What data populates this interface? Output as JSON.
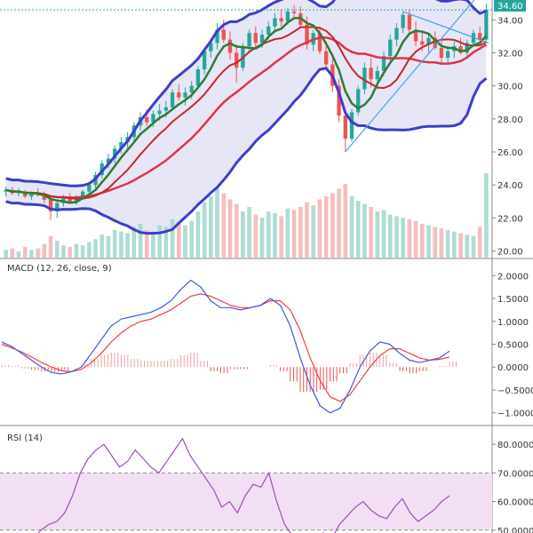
{
  "chart_data": [
    {
      "type": "candlestick",
      "pane": "price",
      "price_tag": "34.60",
      "y_axis_ticks": [
        "20.00",
        "22.00",
        "24.00",
        "26.00",
        "28.00",
        "30.00",
        "32.00",
        "34.00"
      ],
      "ylim": [
        19.6,
        35.2
      ],
      "candles": [
        [
          23.6,
          23.9,
          23.3,
          23.7
        ],
        [
          23.7,
          23.9,
          23.4,
          23.5
        ],
        [
          23.5,
          23.8,
          23.3,
          23.6
        ],
        [
          23.6,
          23.7,
          23.2,
          23.3
        ],
        [
          23.3,
          23.6,
          23.1,
          23.5
        ],
        [
          23.5,
          23.8,
          23.3,
          23.4
        ],
        [
          23.4,
          23.6,
          22.9,
          23.1
        ],
        [
          23.1,
          23.3,
          21.9,
          22.4
        ],
        [
          22.4,
          23.1,
          22.0,
          22.9
        ],
        [
          22.9,
          23.4,
          22.7,
          23.2
        ],
        [
          23.2,
          23.5,
          22.9,
          23.0
        ],
        [
          23.0,
          23.4,
          22.8,
          23.3
        ],
        [
          23.3,
          23.7,
          23.1,
          23.6
        ],
        [
          23.6,
          24.2,
          23.4,
          24.0
        ],
        [
          24.0,
          24.8,
          23.8,
          24.6
        ],
        [
          24.6,
          25.5,
          24.4,
          25.3
        ],
        [
          25.3,
          25.9,
          25.0,
          25.6
        ],
        [
          25.6,
          26.4,
          25.3,
          26.2
        ],
        [
          26.2,
          26.9,
          25.9,
          26.6
        ],
        [
          26.6,
          27.2,
          26.2,
          26.9
        ],
        [
          26.9,
          27.8,
          26.6,
          27.6
        ],
        [
          27.6,
          28.4,
          27.3,
          28.1
        ],
        [
          28.1,
          28.6,
          27.6,
          27.8
        ],
        [
          27.8,
          28.5,
          27.5,
          28.3
        ],
        [
          28.3,
          28.9,
          27.9,
          28.5
        ],
        [
          28.5,
          29.1,
          28.1,
          28.7
        ],
        [
          28.7,
          29.8,
          28.5,
          29.6
        ],
        [
          29.6,
          30.1,
          29.1,
          29.3
        ],
        [
          29.3,
          29.9,
          28.8,
          29.6
        ],
        [
          29.6,
          30.3,
          29.2,
          30.0
        ],
        [
          30.0,
          31.2,
          29.8,
          31.0
        ],
        [
          31.0,
          32.3,
          30.7,
          32.1
        ],
        [
          32.1,
          32.9,
          31.7,
          32.6
        ],
        [
          32.6,
          33.8,
          32.2,
          33.4
        ],
        [
          33.4,
          34.0,
          32.6,
          32.8
        ],
        [
          32.8,
          33.3,
          31.6,
          32.0
        ],
        [
          32.0,
          32.5,
          30.2,
          31.1
        ],
        [
          31.1,
          32.6,
          30.9,
          32.4
        ],
        [
          32.4,
          33.4,
          32.1,
          33.2
        ],
        [
          33.2,
          33.6,
          32.3,
          32.6
        ],
        [
          32.6,
          33.4,
          32.3,
          33.1
        ],
        [
          33.1,
          33.9,
          32.8,
          33.6
        ],
        [
          33.6,
          34.4,
          33.2,
          34.1
        ],
        [
          34.1,
          34.6,
          33.6,
          33.9
        ],
        [
          33.9,
          34.7,
          33.7,
          34.5
        ],
        [
          34.5,
          34.9,
          34.1,
          34.4
        ],
        [
          34.4,
          34.8,
          33.5,
          33.7
        ],
        [
          33.7,
          34.2,
          32.2,
          32.5
        ],
        [
          32.5,
          33.4,
          32.1,
          33.2
        ],
        [
          33.2,
          33.6,
          31.9,
          32.1
        ],
        [
          32.1,
          32.7,
          31.0,
          31.3
        ],
        [
          31.3,
          31.7,
          29.6,
          30.0
        ],
        [
          30.0,
          30.4,
          27.8,
          28.2
        ],
        [
          28.2,
          28.5,
          26.0,
          26.8
        ],
        [
          26.8,
          28.6,
          26.6,
          28.4
        ],
        [
          28.4,
          30.0,
          28.2,
          29.8
        ],
        [
          29.8,
          31.4,
          29.5,
          31.1
        ],
        [
          31.1,
          31.7,
          29.9,
          30.4
        ],
        [
          30.4,
          31.2,
          29.8,
          30.9
        ],
        [
          30.9,
          32.1,
          30.6,
          31.8
        ],
        [
          31.8,
          33.1,
          31.5,
          32.8
        ],
        [
          32.8,
          33.8,
          32.4,
          33.5
        ],
        [
          33.5,
          34.5,
          33.2,
          34.3
        ],
        [
          34.3,
          34.6,
          33.1,
          33.4
        ],
        [
          33.4,
          33.9,
          32.4,
          32.7
        ],
        [
          32.7,
          33.3,
          32.1,
          32.5
        ],
        [
          32.5,
          33.2,
          32.0,
          32.9
        ],
        [
          32.9,
          33.3,
          32.2,
          32.3
        ],
        [
          32.3,
          32.7,
          31.4,
          31.7
        ],
        [
          31.7,
          32.4,
          31.4,
          32.1
        ],
        [
          32.1,
          32.7,
          31.7,
          32.4
        ],
        [
          32.4,
          32.9,
          31.9,
          32.0
        ],
        [
          32.0,
          32.8,
          31.8,
          32.6
        ],
        [
          32.6,
          33.4,
          32.4,
          33.2
        ],
        [
          33.2,
          33.6,
          32.6,
          32.8
        ],
        [
          32.8,
          35.0,
          32.6,
          34.6
        ]
      ],
      "volume": [
        5,
        6,
        4,
        7,
        5,
        6,
        9,
        14,
        11,
        8,
        7,
        9,
        8,
        10,
        12,
        15,
        14,
        18,
        17,
        16,
        20,
        22,
        18,
        17,
        21,
        20,
        25,
        22,
        21,
        24,
        30,
        36,
        40,
        45,
        42,
        38,
        35,
        30,
        33,
        28,
        26,
        30,
        29,
        27,
        32,
        31,
        33,
        36,
        34,
        38,
        40,
        42,
        45,
        48,
        40,
        37,
        35,
        33,
        30,
        31,
        28,
        27,
        26,
        25,
        24,
        22,
        21,
        20,
        19,
        18,
        17,
        16,
        15,
        14,
        20,
        55
      ],
      "overlays": [
        "Bollinger Bands (upper, lower, basis)",
        "Moving Average 1",
        "Moving Average 2"
      ]
    },
    {
      "type": "line",
      "pane": "macd",
      "title": "MACD (12, 26, close, 9)",
      "y_axis_ticks": [
        "2.0000",
        "1.5000",
        "1.0000",
        "0.5000",
        "0.0000",
        "−0.5000",
        "−1.0000"
      ],
      "ylim": [
        -1.2,
        2.2
      ],
      "series": [
        {
          "values": [
            0.55,
            0.45,
            0.3,
            0.15,
            0.0,
            -0.12,
            -0.15,
            -0.1,
            0.0,
            0.3,
            0.6,
            0.9,
            1.05,
            1.1,
            1.15,
            1.2,
            1.3,
            1.45,
            1.7,
            1.9,
            1.75,
            1.45,
            1.3,
            1.3,
            1.25,
            1.3,
            1.35,
            1.5,
            1.35,
            0.9,
            0.2,
            -0.4,
            -0.85,
            -1.0,
            -0.9,
            -0.5,
            0.0,
            0.35,
            0.55,
            0.5,
            0.3,
            0.15,
            0.1,
            0.15,
            0.2,
            0.35
          ]
        },
        {
          "values": [
            0.5,
            0.42,
            0.33,
            0.22,
            0.1,
            0.0,
            -0.08,
            -0.1,
            -0.05,
            0.1,
            0.3,
            0.55,
            0.75,
            0.9,
            1.0,
            1.05,
            1.15,
            1.25,
            1.4,
            1.55,
            1.6,
            1.55,
            1.45,
            1.35,
            1.3,
            1.3,
            1.35,
            1.45,
            1.45,
            1.25,
            0.8,
            0.2,
            -0.3,
            -0.65,
            -0.75,
            -0.6,
            -0.3,
            0.0,
            0.25,
            0.4,
            0.4,
            0.3,
            0.2,
            0.15,
            0.17,
            0.22
          ]
        }
      ]
    },
    {
      "type": "line",
      "pane": "rsi",
      "title": "RSI (14)",
      "y_axis_ticks": [
        "80.0000",
        "70.0000",
        "60.0000",
        "50.0000"
      ],
      "ylim": [
        49,
        85
      ],
      "band": [
        50,
        70
      ],
      "series": [
        {
          "values": [
            48,
            47,
            49,
            46,
            47,
            50,
            52,
            53,
            56,
            62,
            70,
            75,
            78,
            80,
            76,
            72,
            74,
            78,
            75,
            72,
            70,
            74,
            78,
            82,
            76,
            72,
            68,
            64,
            58,
            60,
            56,
            62,
            66,
            65,
            70,
            60,
            52,
            48,
            45,
            46,
            48,
            49,
            47,
            52,
            55,
            58,
            60,
            57,
            55,
            54,
            58,
            61,
            56,
            53,
            55,
            57,
            60,
            62
          ]
        }
      ]
    }
  ]
}
